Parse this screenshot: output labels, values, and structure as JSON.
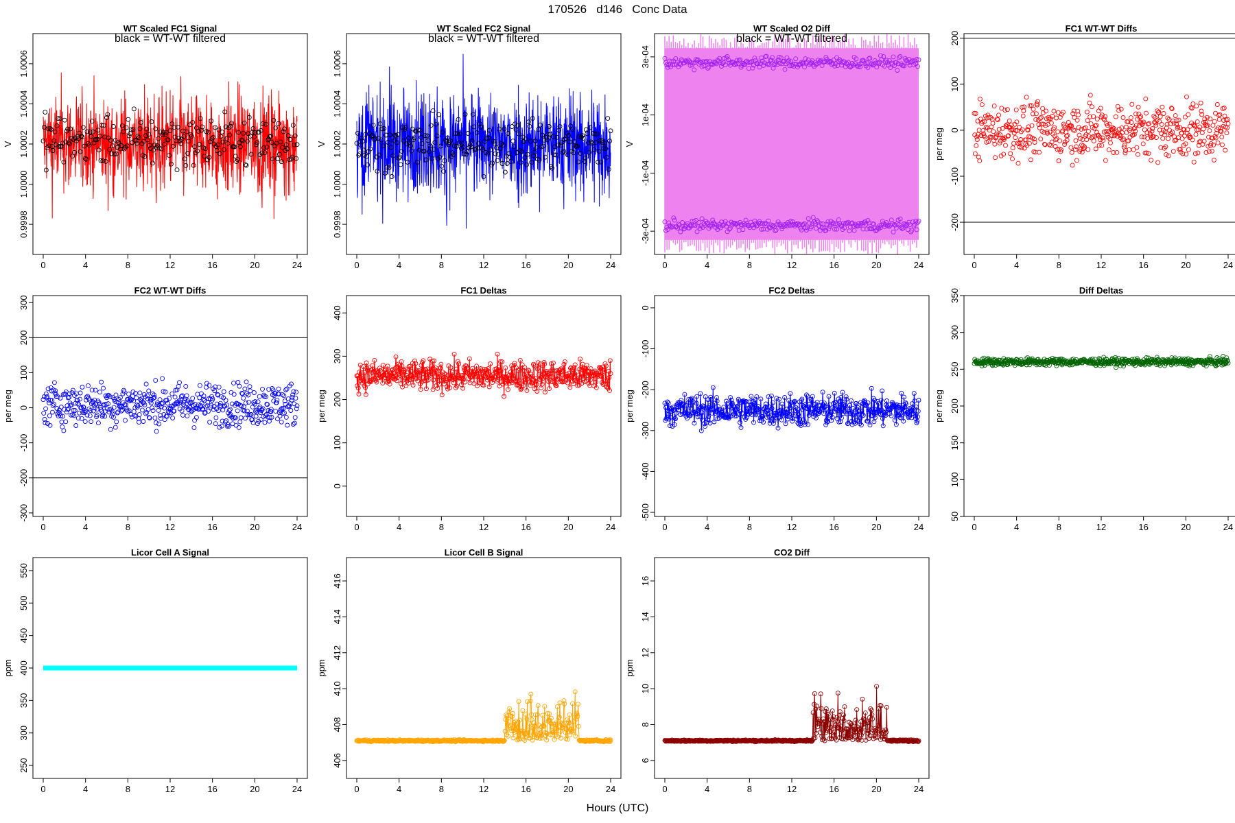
{
  "title": "170526   d146   Conc Data",
  "xlabel": "Hours (UTC)",
  "colors": {
    "red": "#ff0000",
    "blue": "#0000ff",
    "violet": "#ee82ee",
    "purple": "#a020f0",
    "green": "#006400",
    "cyan": "#00ffff",
    "orange": "#ffa500",
    "darkred": "#8b0000",
    "black": "#000000"
  },
  "chart_data": [
    {
      "id": "p1",
      "type": "line",
      "title": "WT Scaled FC1 Signal",
      "annotation": "black = WT-WT filtered",
      "ylabel": "V",
      "xlim": [
        0,
        24
      ],
      "ylim": [
        0.99965,
        1.00075
      ],
      "xticks": [
        "0",
        "4",
        "8",
        "12",
        "16",
        "20",
        "24"
      ],
      "yticks": [
        "0.9998",
        "1.0000",
        "1.0002",
        "1.0004",
        "1.0006"
      ],
      "series": [
        {
          "style": "noise",
          "color": "red",
          "center": 1.0002,
          "spread": 0.00024
        },
        {
          "style": "points",
          "color": "black",
          "center": 1.00022,
          "spread": 0.00012
        }
      ]
    },
    {
      "id": "p2",
      "type": "line",
      "title": "WT Scaled FC2 Signal",
      "annotation": "black = WT-WT filtered",
      "ylabel": "V",
      "xlim": [
        0,
        24
      ],
      "ylim": [
        0.99965,
        1.00075
      ],
      "xticks": [
        "0",
        "4",
        "8",
        "12",
        "16",
        "20",
        "24"
      ],
      "yticks": [
        "0.9998",
        "1.0000",
        "1.0002",
        "1.0004",
        "1.0006"
      ],
      "series": [
        {
          "style": "noise",
          "color": "blue",
          "center": 1.0002,
          "spread": 0.00026
        },
        {
          "style": "points",
          "color": "black",
          "center": 1.0002,
          "spread": 0.00012
        }
      ]
    },
    {
      "id": "p3",
      "type": "line",
      "title": "WT Scaled O2 Diff",
      "annotation": "black = WT-WT filtered",
      "ylabel": "V",
      "xlim": [
        0,
        24
      ],
      "ylim": [
        -0.00038,
        0.00038
      ],
      "xticks": [
        "0",
        "4",
        "8",
        "12",
        "16",
        "20",
        "24"
      ],
      "yticks": [
        "-3e-04",
        "-1e-04",
        "1e-04",
        "3e-04"
      ],
      "series": [
        {
          "style": "band",
          "color": "violet",
          "low": -0.00033,
          "high": 0.00033
        },
        {
          "style": "points",
          "color": "purple",
          "center": 0.00028,
          "spread": 2e-05
        },
        {
          "style": "points",
          "color": "purple",
          "center": -0.00028,
          "spread": 2e-05
        }
      ]
    },
    {
      "id": "p4",
      "type": "scatter",
      "title": "FC1 WT-WT Diffs",
      "annotation": "",
      "ylabel": "per meg",
      "xlim": [
        0,
        24
      ],
      "ylim": [
        -270,
        210
      ],
      "xticks": [
        "0",
        "4",
        "8",
        "12",
        "16",
        "20",
        "24"
      ],
      "yticks": [
        "-200",
        "-100",
        "0",
        "100",
        "200"
      ],
      "hlines": [
        200,
        -200
      ],
      "series": [
        {
          "style": "scatter",
          "color": "red",
          "center": 0,
          "spread": 60
        }
      ]
    },
    {
      "id": "p5",
      "type": "scatter",
      "title": "FC2 WT-WT Diffs",
      "annotation": "",
      "ylabel": "per meg",
      "xlim": [
        0,
        24
      ],
      "ylim": [
        -310,
        320
      ],
      "xticks": [
        "0",
        "4",
        "8",
        "12",
        "16",
        "20",
        "24"
      ],
      "yticks": [
        "-300",
        "-200",
        "-100",
        "0",
        "100",
        "200",
        "300"
      ],
      "hlines": [
        200,
        -200
      ],
      "series": [
        {
          "style": "scatter",
          "color": "blue",
          "center": 10,
          "spread": 60
        }
      ]
    },
    {
      "id": "p6",
      "type": "line",
      "title": "FC1 Deltas",
      "annotation": "",
      "ylabel": "per meg",
      "xlim": [
        0,
        24
      ],
      "ylim": [
        -70,
        440
      ],
      "xticks": [
        "0",
        "4",
        "8",
        "12",
        "16",
        "20",
        "24"
      ],
      "yticks": [
        "0",
        "100",
        "200",
        "300",
        "400"
      ],
      "series": [
        {
          "style": "linepoints",
          "color": "red",
          "center": 255,
          "spread": 35
        }
      ]
    },
    {
      "id": "p7",
      "type": "line",
      "title": "FC2 Deltas",
      "annotation": "",
      "ylabel": "per meg",
      "xlim": [
        0,
        24
      ],
      "ylim": [
        -510,
        30
      ],
      "xticks": [
        "0",
        "4",
        "8",
        "12",
        "16",
        "20",
        "24"
      ],
      "yticks": [
        "-500",
        "-400",
        "-300",
        "-200",
        "-100",
        "0"
      ],
      "series": [
        {
          "style": "linepoints",
          "color": "blue",
          "center": -250,
          "spread": 40
        }
      ]
    },
    {
      "id": "p8",
      "type": "line",
      "title": "Diff Deltas",
      "annotation": "",
      "ylabel": "per meg",
      "xlim": [
        0,
        24
      ],
      "ylim": [
        50,
        350
      ],
      "xticks": [
        "0",
        "4",
        "8",
        "12",
        "16",
        "20",
        "24"
      ],
      "yticks": [
        "50",
        "100",
        "150",
        "200",
        "250",
        "300",
        "350"
      ],
      "series": [
        {
          "style": "linepoints",
          "color": "green",
          "center": 260,
          "spread": 5
        }
      ]
    },
    {
      "id": "p9",
      "type": "line",
      "title": "Licor Cell A Signal",
      "annotation": "",
      "ylabel": "ppm",
      "xlim": [
        0,
        24
      ],
      "ylim": [
        230,
        570
      ],
      "xticks": [
        "0",
        "4",
        "8",
        "12",
        "16",
        "20",
        "24"
      ],
      "yticks": [
        "250",
        "300",
        "350",
        "400",
        "450",
        "500",
        "550"
      ],
      "series": [
        {
          "style": "flat",
          "color": "cyan",
          "center": 400,
          "spread": 0
        }
      ]
    },
    {
      "id": "p10",
      "type": "line",
      "title": "Licor Cell B Signal",
      "annotation": "",
      "ylabel": "ppm",
      "xlim": [
        0,
        24
      ],
      "ylim": [
        405,
        417.3
      ],
      "xticks": [
        "0",
        "4",
        "8",
        "12",
        "16",
        "20",
        "24"
      ],
      "yticks": [
        "406",
        "408",
        "410",
        "412",
        "414",
        "416"
      ],
      "series": [
        {
          "style": "linepoints",
          "color": "orange",
          "center": 407.1,
          "spread": 0.05
        }
      ]
    },
    {
      "id": "p11",
      "type": "line",
      "title": "CO2 Diff",
      "annotation": "",
      "ylabel": "ppm",
      "xlim": [
        0,
        24
      ],
      "ylim": [
        5,
        17.3
      ],
      "xticks": [
        "0",
        "4",
        "8",
        "12",
        "16",
        "20",
        "24"
      ],
      "yticks": [
        "6",
        "8",
        "10",
        "12",
        "14",
        "16"
      ],
      "series": [
        {
          "style": "linepoints",
          "color": "darkred",
          "center": 7.1,
          "spread": 0.05
        }
      ]
    }
  ]
}
